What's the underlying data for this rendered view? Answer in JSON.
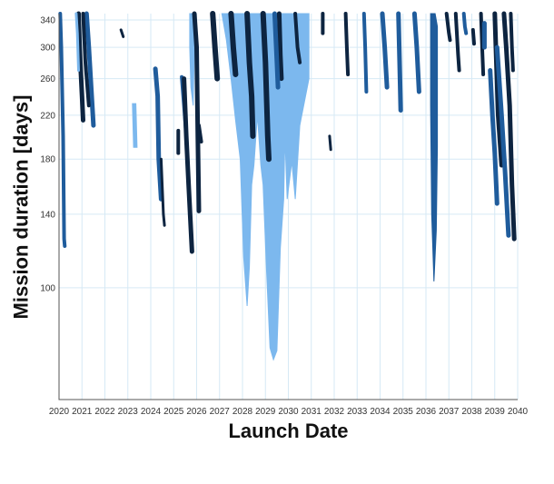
{
  "chart_data": {
    "type": "area",
    "title": "",
    "xlabel": "Launch Date",
    "ylabel": "Mission duration [days]",
    "xlim": [
      2020,
      2040
    ],
    "ylim": [
      60,
      350
    ],
    "yscale": "log",
    "grid": true,
    "x_ticks": [
      2020,
      2021,
      2022,
      2023,
      2024,
      2025,
      2026,
      2027,
      2028,
      2029,
      2030,
      2031,
      2032,
      2033,
      2034,
      2035,
      2036,
      2037,
      2038,
      2039,
      2040
    ],
    "y_ticks": [
      100,
      140,
      180,
      220,
      260,
      300,
      340
    ],
    "colors": {
      "dark": "#0d2440",
      "mid": "#1f5c9c",
      "light": "#7cb8ee",
      "grid": "#d6e9f5"
    },
    "regions": [
      {
        "shade": "light",
        "points": [
          [
            2027.1,
            350
          ],
          [
            2027.8,
            350
          ],
          [
            2028.3,
            350
          ],
          [
            2028.9,
            350
          ],
          [
            2029.4,
            350
          ],
          [
            2029.8,
            350
          ],
          [
            2030.3,
            350
          ],
          [
            2030.6,
            350
          ],
          [
            2030.9,
            350
          ],
          [
            2030.9,
            260
          ],
          [
            2030.5,
            210
          ],
          [
            2030.3,
            150
          ],
          [
            2030.15,
            178
          ],
          [
            2029.95,
            150
          ],
          [
            2029.85,
            200
          ],
          [
            2029.8,
            150
          ],
          [
            2029.65,
            120
          ],
          [
            2029.5,
            75
          ],
          [
            2029.35,
            72
          ],
          [
            2029.2,
            76
          ],
          [
            2029.05,
            108
          ],
          [
            2028.9,
            160
          ],
          [
            2028.8,
            175
          ],
          [
            2028.65,
            220
          ],
          [
            2028.5,
            175
          ],
          [
            2028.4,
            160
          ],
          [
            2028.3,
            110
          ],
          [
            2028.2,
            92
          ],
          [
            2028.05,
            115
          ],
          [
            2027.9,
            180
          ],
          [
            2027.7,
            215
          ],
          [
            2027.5,
            260
          ],
          [
            2027.3,
            310
          ]
        ]
      },
      {
        "shade": "mid",
        "points": [
          [
            2036.2,
            350
          ],
          [
            2036.4,
            350
          ],
          [
            2036.5,
            330
          ],
          [
            2036.5,
            190
          ],
          [
            2036.45,
            130
          ],
          [
            2036.35,
            103
          ],
          [
            2036.25,
            140
          ],
          [
            2036.2,
            230
          ]
        ]
      },
      {
        "shade": "light",
        "points": [
          [
            2023.2,
            232
          ],
          [
            2023.35,
            232
          ],
          [
            2023.4,
            190
          ],
          [
            2023.25,
            190
          ]
        ]
      },
      {
        "shade": "light",
        "points": [
          [
            2025.7,
            350
          ],
          [
            2025.85,
            350
          ],
          [
            2025.9,
            300
          ],
          [
            2025.85,
            230
          ],
          [
            2025.75,
            250
          ],
          [
            2025.7,
            300
          ]
        ]
      }
    ],
    "traces": [
      {
        "shade": "mid",
        "width": 4,
        "points": [
          [
            2020.05,
            350
          ],
          [
            2020.1,
            300
          ],
          [
            2020.18,
            200
          ],
          [
            2020.22,
            125
          ],
          [
            2020.25,
            121
          ]
        ]
      },
      {
        "shade": "dark",
        "width": 5,
        "points": [
          [
            2020.85,
            350
          ],
          [
            2020.9,
            300
          ],
          [
            2021.0,
            240
          ],
          [
            2021.05,
            215
          ]
        ]
      },
      {
        "shade": "mid",
        "width": 5,
        "points": [
          [
            2021.2,
            350
          ],
          [
            2021.3,
            300
          ],
          [
            2021.4,
            250
          ],
          [
            2021.5,
            210
          ]
        ]
      },
      {
        "shade": "dark",
        "width": 4,
        "points": [
          [
            2021.05,
            350
          ],
          [
            2021.15,
            280
          ],
          [
            2021.3,
            230
          ]
        ]
      },
      {
        "shade": "light",
        "width": 3,
        "points": [
          [
            2020.75,
            350
          ],
          [
            2020.8,
            320
          ],
          [
            2020.85,
            270
          ]
        ]
      },
      {
        "shade": "dark",
        "width": 3,
        "points": [
          [
            2022.7,
            325
          ],
          [
            2022.8,
            315
          ]
        ]
      },
      {
        "shade": "mid",
        "width": 5,
        "points": [
          [
            2024.2,
            272
          ],
          [
            2024.3,
            240
          ],
          [
            2024.35,
            180
          ],
          [
            2024.45,
            150
          ]
        ]
      },
      {
        "shade": "dark",
        "width": 3,
        "points": [
          [
            2024.45,
            180
          ],
          [
            2024.55,
            140
          ],
          [
            2024.6,
            133
          ]
        ]
      },
      {
        "shade": "dark",
        "width": 4,
        "points": [
          [
            2025.2,
            205
          ],
          [
            2025.2,
            185
          ]
        ]
      },
      {
        "shade": "mid",
        "width": 4,
        "points": [
          [
            2025.35,
            262
          ],
          [
            2025.45,
            230
          ],
          [
            2025.55,
            200
          ]
        ]
      },
      {
        "shade": "dark",
        "width": 5,
        "points": [
          [
            2025.45,
            260
          ],
          [
            2025.55,
            200
          ],
          [
            2025.65,
            160
          ],
          [
            2025.8,
            118
          ]
        ]
      },
      {
        "shade": "dark",
        "width": 5,
        "points": [
          [
            2025.9,
            350
          ],
          [
            2026.0,
            300
          ],
          [
            2026.05,
            200
          ],
          [
            2026.1,
            142
          ]
        ]
      },
      {
        "shade": "dark",
        "width": 4,
        "points": [
          [
            2026.1,
            210
          ],
          [
            2026.2,
            195
          ]
        ]
      },
      {
        "shade": "dark",
        "width": 6,
        "points": [
          [
            2026.7,
            350
          ],
          [
            2026.8,
            300
          ],
          [
            2026.9,
            260
          ]
        ]
      },
      {
        "shade": "dark",
        "width": 6,
        "points": [
          [
            2027.5,
            350
          ],
          [
            2027.6,
            300
          ],
          [
            2027.7,
            265
          ]
        ]
      },
      {
        "shade": "dark",
        "width": 6,
        "points": [
          [
            2028.2,
            350
          ],
          [
            2028.3,
            280
          ],
          [
            2028.4,
            240
          ],
          [
            2028.45,
            200
          ]
        ]
      },
      {
        "shade": "dark",
        "width": 6,
        "points": [
          [
            2028.9,
            350
          ],
          [
            2029.0,
            280
          ],
          [
            2029.1,
            200
          ],
          [
            2029.15,
            180
          ]
        ]
      },
      {
        "shade": "dark",
        "width": 5,
        "points": [
          [
            2029.6,
            350
          ],
          [
            2029.65,
            290
          ],
          [
            2029.7,
            260
          ]
        ]
      },
      {
        "shade": "mid",
        "width": 5,
        "points": [
          [
            2029.4,
            350
          ],
          [
            2029.5,
            280
          ],
          [
            2029.55,
            250
          ]
        ]
      },
      {
        "shade": "dark",
        "width": 4,
        "points": [
          [
            2030.3,
            350
          ],
          [
            2030.4,
            300
          ],
          [
            2030.5,
            280
          ]
        ]
      },
      {
        "shade": "dark",
        "width": 4,
        "points": [
          [
            2031.5,
            350
          ],
          [
            2031.5,
            320
          ]
        ]
      },
      {
        "shade": "dark",
        "width": 3,
        "points": [
          [
            2031.8,
            200
          ],
          [
            2031.85,
            188
          ]
        ]
      },
      {
        "shade": "dark",
        "width": 4,
        "points": [
          [
            2032.5,
            350
          ],
          [
            2032.55,
            300
          ],
          [
            2032.6,
            265
          ]
        ]
      },
      {
        "shade": "mid",
        "width": 4,
        "points": [
          [
            2033.3,
            350
          ],
          [
            2033.35,
            300
          ],
          [
            2033.4,
            245
          ]
        ]
      },
      {
        "shade": "mid",
        "width": 5,
        "points": [
          [
            2034.1,
            350
          ],
          [
            2034.2,
            300
          ],
          [
            2034.3,
            250
          ]
        ]
      },
      {
        "shade": "mid",
        "width": 5,
        "points": [
          [
            2034.8,
            350
          ],
          [
            2034.85,
            280
          ],
          [
            2034.9,
            225
          ]
        ]
      },
      {
        "shade": "mid",
        "width": 5,
        "points": [
          [
            2035.5,
            350
          ],
          [
            2035.6,
            300
          ],
          [
            2035.7,
            245
          ]
        ]
      },
      {
        "shade": "dark",
        "width": 4,
        "points": [
          [
            2036.9,
            350
          ],
          [
            2037.0,
            320
          ],
          [
            2037.05,
            310
          ]
        ]
      },
      {
        "shade": "dark",
        "width": 4,
        "points": [
          [
            2037.3,
            350
          ],
          [
            2037.4,
            290
          ],
          [
            2037.45,
            270
          ]
        ]
      },
      {
        "shade": "mid",
        "width": 4,
        "points": [
          [
            2037.65,
            350
          ],
          [
            2037.7,
            330
          ],
          [
            2037.75,
            320
          ]
        ]
      },
      {
        "shade": "dark",
        "width": 4,
        "points": [
          [
            2038.4,
            350
          ],
          [
            2038.45,
            300
          ],
          [
            2038.5,
            265
          ]
        ]
      },
      {
        "shade": "dark",
        "width": 4,
        "points": [
          [
            2038.05,
            325
          ],
          [
            2038.1,
            305
          ]
        ]
      },
      {
        "shade": "mid",
        "width": 5,
        "points": [
          [
            2038.55,
            335
          ],
          [
            2038.55,
            300
          ]
        ]
      },
      {
        "shade": "mid",
        "width": 5,
        "points": [
          [
            2038.8,
            270
          ],
          [
            2038.9,
            220
          ],
          [
            2039.0,
            185
          ],
          [
            2039.1,
            147
          ]
        ]
      },
      {
        "shade": "dark",
        "width": 5,
        "points": [
          [
            2039.0,
            350
          ],
          [
            2039.05,
            300
          ],
          [
            2039.15,
            220
          ],
          [
            2039.3,
            175
          ]
        ]
      },
      {
        "shade": "mid",
        "width": 5,
        "points": [
          [
            2039.1,
            300
          ],
          [
            2039.3,
            220
          ],
          [
            2039.45,
            170
          ],
          [
            2039.6,
            127
          ]
        ]
      },
      {
        "shade": "dark",
        "width": 5,
        "points": [
          [
            2039.4,
            350
          ],
          [
            2039.5,
            300
          ],
          [
            2039.65,
            230
          ],
          [
            2039.75,
            160
          ],
          [
            2039.85,
            125
          ]
        ]
      },
      {
        "shade": "dark",
        "width": 4,
        "points": [
          [
            2039.7,
            350
          ],
          [
            2039.75,
            300
          ],
          [
            2039.8,
            270
          ]
        ]
      }
    ]
  }
}
